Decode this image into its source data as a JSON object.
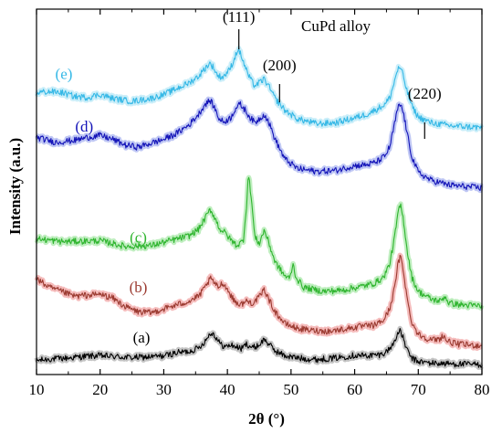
{
  "chart_data": {
    "type": "line",
    "title": "CuPd alloy",
    "xlabel": "2θ (°)",
    "ylabel": "Intensity (a.u.)",
    "xlim": [
      10,
      80
    ],
    "xticks": [
      10,
      20,
      30,
      40,
      50,
      60,
      70,
      80
    ],
    "y_units": "arbitrary, vertically offset traces",
    "y_ticks_shown": false,
    "grid": false,
    "legend": "none",
    "peak_annotations": [
      {
        "label": "(111)",
        "x": 41.8
      },
      {
        "label": "(200)",
        "x": 48.2
      },
      {
        "label": "(220)",
        "x": 71.0
      }
    ],
    "series": [
      {
        "name": "(a)",
        "color": "#000000",
        "halo": "#b0b0b0",
        "label_at": {
          "x": 26.5,
          "y": 11.8
        },
        "points": [
          [
            10,
            2.5
          ],
          [
            12,
            3.2
          ],
          [
            15,
            3.8
          ],
          [
            18,
            4.8
          ],
          [
            20,
            5.0
          ],
          [
            22,
            4.6
          ],
          [
            25,
            4.0
          ],
          [
            28,
            4.4
          ],
          [
            30,
            4.9
          ],
          [
            32,
            6.5
          ],
          [
            34,
            7.2
          ],
          [
            35.5,
            9.0
          ],
          [
            36.5,
            12.5
          ],
          [
            37.2,
            16.0
          ],
          [
            37.6,
            16.8
          ],
          [
            38.2,
            14.5
          ],
          [
            39,
            10.5
          ],
          [
            39.8,
            9.5
          ],
          [
            40.5,
            10.5
          ],
          [
            41.2,
            9.8
          ],
          [
            42.2,
            8.5
          ],
          [
            43,
            11.0
          ],
          [
            44,
            9.0
          ],
          [
            45,
            10.5
          ],
          [
            45.8,
            13.5
          ],
          [
            46.5,
            11.0
          ],
          [
            47.5,
            7.5
          ],
          [
            49,
            5.0
          ],
          [
            51,
            3.8
          ],
          [
            54,
            3.0
          ],
          [
            57,
            3.8
          ],
          [
            60,
            5.2
          ],
          [
            62,
            5.0
          ],
          [
            64,
            5.5
          ],
          [
            65,
            7.0
          ],
          [
            66,
            10.5
          ],
          [
            66.6,
            15.5
          ],
          [
            67.1,
            17.5
          ],
          [
            67.6,
            14.5
          ],
          [
            68.2,
            8.0
          ],
          [
            69,
            3.5
          ],
          [
            70,
            2.0
          ],
          [
            72,
            1.2
          ],
          [
            75,
            0.8
          ],
          [
            80,
            0.4
          ]
        ]
      },
      {
        "name": "(b)",
        "color": "#9b3a30",
        "halo": "#f2a6a6",
        "label_at": {
          "x": 26.0,
          "y": 37.5
        },
        "points": [
          [
            10,
            44.5
          ],
          [
            12,
            40.0
          ],
          [
            14,
            37.8
          ],
          [
            16,
            35.5
          ],
          [
            18,
            36.0
          ],
          [
            20,
            36.5
          ],
          [
            22,
            34.5
          ],
          [
            24,
            30.0
          ],
          [
            26,
            27.5
          ],
          [
            28,
            27.0
          ],
          [
            30,
            29.0
          ],
          [
            32,
            31.0
          ],
          [
            34,
            33.0
          ],
          [
            35.5,
            35.5
          ],
          [
            36.5,
            40.0
          ],
          [
            37.3,
            44.5
          ],
          [
            37.8,
            43.0
          ],
          [
            38.5,
            40.0
          ],
          [
            39.3,
            42.5
          ],
          [
            40,
            39.0
          ],
          [
            41,
            33.5
          ],
          [
            42,
            31.0
          ],
          [
            43,
            33.0
          ],
          [
            44,
            32.0
          ],
          [
            45,
            35.0
          ],
          [
            45.8,
            39.0
          ],
          [
            46.5,
            34.0
          ],
          [
            47.5,
            27.5
          ],
          [
            49,
            21.5
          ],
          [
            51,
            19.0
          ],
          [
            53,
            18.0
          ],
          [
            56,
            17.5
          ],
          [
            59,
            19.0
          ],
          [
            61,
            20.0
          ],
          [
            63,
            20.5
          ],
          [
            64.5,
            23.0
          ],
          [
            65.5,
            29.0
          ],
          [
            66.3,
            40.0
          ],
          [
            66.8,
            52.0
          ],
          [
            67.2,
            56.0
          ],
          [
            67.7,
            48.0
          ],
          [
            68.3,
            33.0
          ],
          [
            69,
            22.0
          ],
          [
            70,
            16.0
          ],
          [
            72,
            13.0
          ],
          [
            73.3,
            13.5
          ],
          [
            73.9,
            15.5
          ],
          [
            74.5,
            12.5
          ],
          [
            76,
            11.0
          ],
          [
            80,
            10.0
          ]
        ]
      },
      {
        "name": "(c)",
        "color": "#2fb52f",
        "halo": "#a9e8a9",
        "label_at": {
          "x": 26.0,
          "y": 63.0
        },
        "points": [
          [
            10,
            65.0
          ],
          [
            14,
            63.5
          ],
          [
            18,
            63.8
          ],
          [
            20,
            64.0
          ],
          [
            24,
            61.0
          ],
          [
            28,
            61.5
          ],
          [
            31,
            64.0
          ],
          [
            34,
            66.5
          ],
          [
            35.5,
            70.0
          ],
          [
            36.5,
            75.5
          ],
          [
            37.3,
            80.0
          ],
          [
            38,
            76.0
          ],
          [
            38.8,
            70.0
          ],
          [
            39.5,
            68.5
          ],
          [
            40.5,
            64.5
          ],
          [
            41.5,
            61.5
          ],
          [
            42.5,
            64.0
          ],
          [
            43.0,
            82.0
          ],
          [
            43.3,
            98.0
          ],
          [
            43.7,
            88.0
          ],
          [
            44.3,
            66.0
          ],
          [
            45,
            62.5
          ],
          [
            45.8,
            69.5
          ],
          [
            46.5,
            63.0
          ],
          [
            47.5,
            53.0
          ],
          [
            49,
            46.0
          ],
          [
            49.8,
            44.5
          ],
          [
            50.3,
            52.0
          ],
          [
            50.8,
            45.0
          ],
          [
            52,
            40.0
          ],
          [
            55,
            38.0
          ],
          [
            58,
            38.5
          ],
          [
            61,
            40.5
          ],
          [
            63,
            42.0
          ],
          [
            64.5,
            45.0
          ],
          [
            65.5,
            52.0
          ],
          [
            66.3,
            66.0
          ],
          [
            66.8,
            78.0
          ],
          [
            67.2,
            82.5
          ],
          [
            67.7,
            74.0
          ],
          [
            68.3,
            58.0
          ],
          [
            69,
            45.0
          ],
          [
            70,
            38.0
          ],
          [
            72,
            34.0
          ],
          [
            73.5,
            33.0
          ],
          [
            74.2,
            35.5
          ],
          [
            74.8,
            32.0
          ],
          [
            77,
            31.0
          ],
          [
            80,
            30.5
          ]
        ]
      },
      {
        "name": "(d)",
        "color": "#1414b8",
        "halo": "#aab4f0",
        "label_at": {
          "x": 17.5,
          "y": 120.0
        },
        "points": [
          [
            10,
            117.0
          ],
          [
            13,
            114.5
          ],
          [
            16,
            115.5
          ],
          [
            18,
            117.0
          ],
          [
            20,
            118.0
          ],
          [
            22,
            116.0
          ],
          [
            24,
            113.0
          ],
          [
            26,
            112.0
          ],
          [
            28,
            114.0
          ],
          [
            30,
            116.0
          ],
          [
            32,
            119.0
          ],
          [
            34,
            123.5
          ],
          [
            35.5,
            129.0
          ],
          [
            36.5,
            134.0
          ],
          [
            37.3,
            136.0
          ],
          [
            38,
            132.0
          ],
          [
            38.8,
            126.0
          ],
          [
            39.5,
            125.0
          ],
          [
            40.5,
            127.0
          ],
          [
            41.3,
            132.0
          ],
          [
            42,
            134.0
          ],
          [
            42.8,
            131.0
          ],
          [
            43.5,
            127.5
          ],
          [
            44.3,
            124.5
          ],
          [
            45.2,
            127.0
          ],
          [
            45.8,
            129.0
          ],
          [
            46.6,
            124.0
          ],
          [
            47.5,
            116.0
          ],
          [
            49,
            106.0
          ],
          [
            51,
            101.0
          ],
          [
            54,
            99.5
          ],
          [
            57,
            100.0
          ],
          [
            60,
            102.5
          ],
          [
            62,
            103.0
          ],
          [
            63.5,
            104.5
          ],
          [
            64.8,
            107.5
          ],
          [
            65.6,
            113.0
          ],
          [
            66.2,
            123.0
          ],
          [
            66.8,
            132.0
          ],
          [
            67.2,
            134.0
          ],
          [
            67.7,
            129.0
          ],
          [
            68.3,
            118.0
          ],
          [
            69,
            107.0
          ],
          [
            70,
            99.0
          ],
          [
            72,
            95.0
          ],
          [
            75,
            92.5
          ],
          [
            80,
            91.0
          ]
        ]
      },
      {
        "name": "(e)",
        "color": "#35b8e6",
        "halo": "#b8e8f7",
        "label_at": {
          "x": 14.3,
          "y": 147.0
        },
        "points": [
          [
            10,
            140.0
          ],
          [
            12,
            140.5
          ],
          [
            14,
            140.0
          ],
          [
            16,
            138.0
          ],
          [
            18,
            137.5
          ],
          [
            20,
            139.0
          ],
          [
            22,
            137.0
          ],
          [
            25,
            135.5
          ],
          [
            28,
            137.0
          ],
          [
            30,
            139.0
          ],
          [
            32,
            142.0
          ],
          [
            34,
            145.0
          ],
          [
            35.5,
            148.5
          ],
          [
            36.5,
            152.5
          ],
          [
            37.2,
            155.0
          ],
          [
            37.8,
            153.0
          ],
          [
            38.5,
            148.5
          ],
          [
            39.3,
            148.0
          ],
          [
            40.3,
            151.5
          ],
          [
            41.0,
            156.5
          ],
          [
            41.6,
            162.0
          ],
          [
            42,
            160.5
          ],
          [
            42.8,
            153.0
          ],
          [
            43.5,
            147.5
          ],
          [
            44.3,
            143.5
          ],
          [
            45.2,
            145.5
          ],
          [
            45.8,
            147.0
          ],
          [
            46.6,
            142.5
          ],
          [
            47.5,
            137.0
          ],
          [
            49,
            131.0
          ],
          [
            51,
            126.5
          ],
          [
            54,
            124.0
          ],
          [
            57,
            124.5
          ],
          [
            60,
            127.0
          ],
          [
            62,
            129.0
          ],
          [
            63.5,
            131.5
          ],
          [
            64.8,
            134.0
          ],
          [
            65.6,
            138.0
          ],
          [
            66.2,
            145.0
          ],
          [
            66.7,
            151.5
          ],
          [
            67.1,
            153.0
          ],
          [
            67.6,
            149.0
          ],
          [
            68.2,
            141.0
          ],
          [
            69,
            133.0
          ],
          [
            70,
            127.5
          ],
          [
            72,
            124.5
          ],
          [
            75,
            123.0
          ],
          [
            80,
            122.0
          ]
        ]
      }
    ]
  }
}
